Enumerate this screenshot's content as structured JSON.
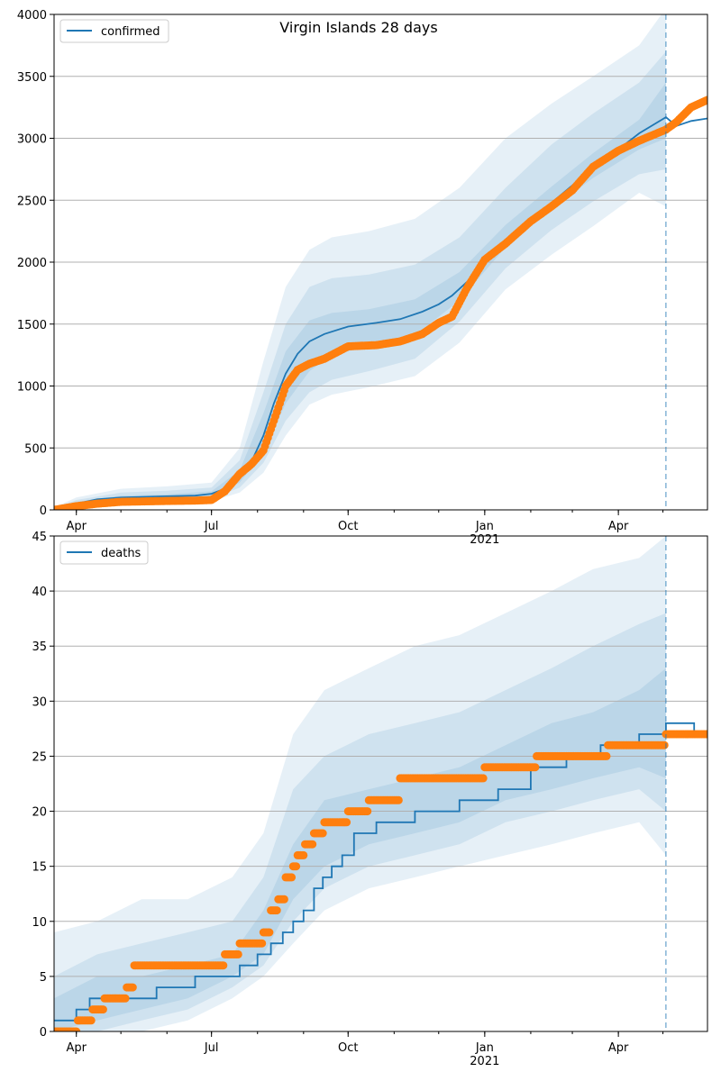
{
  "chart_data": [
    {
      "type": "line",
      "title": "Virgin Islands 28 days",
      "xlabel": "",
      "ylabel": "",
      "ylim": [
        0,
        4000
      ],
      "xlim": [
        "2020-03-17",
        "2021-05-31"
      ],
      "grid": "horizontal",
      "legend_position": "top-left",
      "y_ticks": [
        0,
        500,
        1000,
        1500,
        2000,
        2500,
        3000,
        3500,
        4000
      ],
      "y_tick_labels": [
        "0",
        "500",
        "1000",
        "1500",
        "2000",
        "2500",
        "3000",
        "3500",
        "4000"
      ],
      "x_ticks": [
        "2020-04-01",
        "2020-07-01",
        "2020-10-01",
        "2021-01-01",
        "2021-04-01"
      ],
      "x_tick_labels": [
        "Apr",
        "Jul",
        "Oct",
        "Jan",
        "Apr"
      ],
      "x_year_label": {
        "date": "2021-01-01",
        "text": "2021"
      },
      "vline": "2021-05-03",
      "series": [
        {
          "name": "confirmed",
          "kind": "model_line",
          "color": "#1f77b4",
          "x": [
            "2020-03-17",
            "2020-04-01",
            "2020-04-15",
            "2020-05-01",
            "2020-06-01",
            "2020-06-20",
            "2020-07-01",
            "2020-07-10",
            "2020-07-20",
            "2020-07-28",
            "2020-08-05",
            "2020-08-12",
            "2020-08-20",
            "2020-08-28",
            "2020-09-05",
            "2020-09-15",
            "2020-10-01",
            "2020-10-20",
            "2020-11-05",
            "2020-11-20",
            "2020-12-01",
            "2020-12-10",
            "2020-12-20",
            "2021-01-01",
            "2021-01-15",
            "2021-02-01",
            "2021-02-15",
            "2021-03-01",
            "2021-03-15",
            "2021-04-01",
            "2021-04-15",
            "2021-05-03",
            "2021-05-10",
            "2021-05-20",
            "2021-05-31"
          ],
          "y": [
            5,
            50,
            85,
            100,
            110,
            115,
            130,
            170,
            260,
            390,
            600,
            860,
            1100,
            1260,
            1360,
            1420,
            1480,
            1510,
            1540,
            1600,
            1660,
            1730,
            1840,
            1990,
            2160,
            2320,
            2480,
            2620,
            2770,
            2910,
            3040,
            3170,
            3100,
            3140,
            3160
          ]
        },
        {
          "name": "",
          "kind": "observed",
          "color": "#ff7f0e",
          "x": [
            "2020-03-17",
            "2020-04-01",
            "2020-04-15",
            "2020-05-01",
            "2020-06-01",
            "2020-06-20",
            "2020-07-01",
            "2020-07-10",
            "2020-07-20",
            "2020-07-28",
            "2020-08-05",
            "2020-08-12",
            "2020-08-20",
            "2020-08-28",
            "2020-09-05",
            "2020-09-15",
            "2020-10-01",
            "2020-10-20",
            "2020-11-05",
            "2020-11-20",
            "2020-12-01",
            "2020-12-10",
            "2020-12-20",
            "2021-01-01",
            "2021-01-15",
            "2021-02-01",
            "2021-02-15",
            "2021-03-01",
            "2021-03-15",
            "2021-04-01",
            "2021-04-15",
            "2021-05-03",
            "2021-05-10",
            "2021-05-20",
            "2021-05-31"
          ],
          "y": [
            0,
            30,
            50,
            65,
            72,
            75,
            80,
            150,
            290,
            370,
            480,
            720,
            1000,
            1130,
            1180,
            1220,
            1320,
            1330,
            1360,
            1420,
            1510,
            1560,
            1790,
            2020,
            2150,
            2330,
            2450,
            2580,
            2770,
            2900,
            2980,
            3070,
            3130,
            3250,
            3310
          ]
        }
      ],
      "bands": {
        "x": [
          "2020-03-17",
          "2020-04-01",
          "2020-05-01",
          "2020-06-01",
          "2020-07-01",
          "2020-07-20",
          "2020-08-05",
          "2020-08-20",
          "2020-09-05",
          "2020-09-20",
          "2020-10-15",
          "2020-11-15",
          "2020-12-15",
          "2021-01-15",
          "2021-02-15",
          "2021-03-15",
          "2021-04-15",
          "2021-05-03"
        ],
        "color": "#1f77b4",
        "ranges": [
          {
            "lower": [
              0,
              20,
              40,
              50,
              70,
              140,
              300,
              600,
              850,
              930,
              990,
              1080,
              1350,
              1780,
              2060,
              2290,
              2560,
              2450
            ],
            "upper": [
              20,
              100,
              170,
              190,
              220,
              500,
              1200,
              1800,
              2100,
              2200,
              2250,
              2350,
              2600,
              3000,
              3280,
              3500,
              3750,
              4050
            ]
          },
          {
            "lower": [
              0,
              30,
              60,
              70,
              90,
              180,
              380,
              720,
              950,
              1050,
              1120,
              1220,
              1520,
              1950,
              2260,
              2490,
              2710,
              2750
            ],
            "upper": [
              12,
              80,
              140,
              155,
              180,
              400,
              950,
              1500,
              1800,
              1870,
              1900,
              1980,
              2200,
              2600,
              2950,
              3200,
              3450,
              3700
            ]
          },
          {
            "lower": [
              2,
              40,
              75,
              85,
              105,
              220,
              460,
              860,
              1120,
              1250,
              1320,
              1410,
              1690,
              2120,
              2430,
              2680,
              2910,
              3000
            ],
            "upper": [
              8,
              65,
              115,
              125,
              150,
              320,
              780,
              1280,
              1530,
              1590,
              1620,
              1700,
              1920,
              2300,
              2610,
              2880,
              3150,
              3450
            ]
          }
        ]
      }
    },
    {
      "type": "line",
      "title": "",
      "xlabel": "",
      "ylabel": "",
      "ylim": [
        0,
        45
      ],
      "xlim": [
        "2020-03-17",
        "2021-05-31"
      ],
      "grid": "horizontal",
      "legend_position": "top-left",
      "y_ticks": [
        0,
        5,
        10,
        15,
        20,
        25,
        30,
        35,
        40,
        45
      ],
      "y_tick_labels": [
        "0",
        "5",
        "10",
        "15",
        "20",
        "25",
        "30",
        "35",
        "40",
        "45"
      ],
      "x_ticks": [
        "2020-04-01",
        "2020-07-01",
        "2020-10-01",
        "2021-01-01",
        "2021-04-01"
      ],
      "x_tick_labels": [
        "Apr",
        "Jul",
        "Oct",
        "Jan",
        "Apr"
      ],
      "x_year_label": {
        "date": "2021-01-01",
        "text": "2021"
      },
      "vline": "2021-05-03",
      "series": [
        {
          "name": "deaths",
          "kind": "model_step",
          "color": "#1f77b4",
          "x": [
            "2020-03-17",
            "2020-04-01",
            "2020-04-10",
            "2020-04-25",
            "2020-05-25",
            "2020-06-20",
            "2020-07-20",
            "2020-08-01",
            "2020-08-10",
            "2020-08-18",
            "2020-08-25",
            "2020-09-01",
            "2020-09-08",
            "2020-09-14",
            "2020-09-20",
            "2020-09-27",
            "2020-10-05",
            "2020-10-20",
            "2020-11-15",
            "2020-12-15",
            "2021-01-10",
            "2021-02-01",
            "2021-02-25",
            "2021-03-20",
            "2021-04-15",
            "2021-05-03",
            "2021-05-22"
          ],
          "y": [
            1,
            2,
            3,
            3,
            4,
            5,
            6,
            7,
            8,
            9,
            10,
            11,
            13,
            14,
            15,
            16,
            18,
            19,
            20,
            21,
            22,
            24,
            25,
            26,
            27,
            28,
            27
          ]
        },
        {
          "name": "",
          "kind": "observed",
          "color": "#ff7f0e",
          "x": [
            "2020-03-17",
            "2020-04-02",
            "2020-04-12",
            "2020-04-20",
            "2020-05-05",
            "2020-05-10",
            "2020-07-05",
            "2020-07-10",
            "2020-07-20",
            "2020-08-05",
            "2020-08-10",
            "2020-08-15",
            "2020-08-20",
            "2020-08-25",
            "2020-08-28",
            "2020-09-02",
            "2020-09-08",
            "2020-09-15",
            "2020-10-01",
            "2020-10-15",
            "2020-11-05",
            "2021-01-01",
            "2021-02-05",
            "2021-03-25",
            "2021-05-03",
            "2021-05-31"
          ],
          "y": [
            0,
            1,
            2,
            3,
            4,
            6,
            6,
            7,
            8,
            9,
            11,
            12,
            14,
            15,
            16,
            17,
            18,
            19,
            20,
            21,
            23,
            24,
            25,
            26,
            27,
            27
          ]
        }
      ],
      "bands": {
        "x": [
          "2020-03-17",
          "2020-04-15",
          "2020-05-15",
          "2020-06-15",
          "2020-07-15",
          "2020-08-05",
          "2020-08-25",
          "2020-09-15",
          "2020-10-15",
          "2020-11-15",
          "2020-12-15",
          "2021-01-15",
          "2021-02-15",
          "2021-03-15",
          "2021-04-15",
          "2021-05-03"
        ],
        "color": "#1f77b4",
        "ranges": [
          {
            "lower": [
              0,
              0,
              0,
              1,
              3,
              5,
              8,
              11,
              13,
              14,
              15,
              16,
              17,
              18,
              19,
              16
            ],
            "upper": [
              9,
              10,
              12,
              12,
              14,
              18,
              27,
              31,
              33,
              35,
              36,
              38,
              40,
              42,
              43,
              45
            ]
          },
          {
            "lower": [
              0,
              0,
              1,
              2,
              4,
              6,
              10,
              13,
              15,
              16,
              17,
              19,
              20,
              21,
              22,
              20
            ],
            "upper": [
              5,
              7,
              8,
              9,
              10,
              14,
              22,
              25,
              27,
              28,
              29,
              31,
              33,
              35,
              37,
              38
            ]
          },
          {
            "lower": [
              0,
              1,
              2,
              3,
              5,
              7,
              12,
              15,
              17,
              18,
              19,
              21,
              22,
              23,
              24,
              23
            ],
            "upper": [
              3,
              5,
              5,
              6,
              7,
              11,
              17,
              21,
              22,
              23,
              24,
              26,
              28,
              29,
              31,
              33
            ]
          }
        ]
      }
    }
  ]
}
